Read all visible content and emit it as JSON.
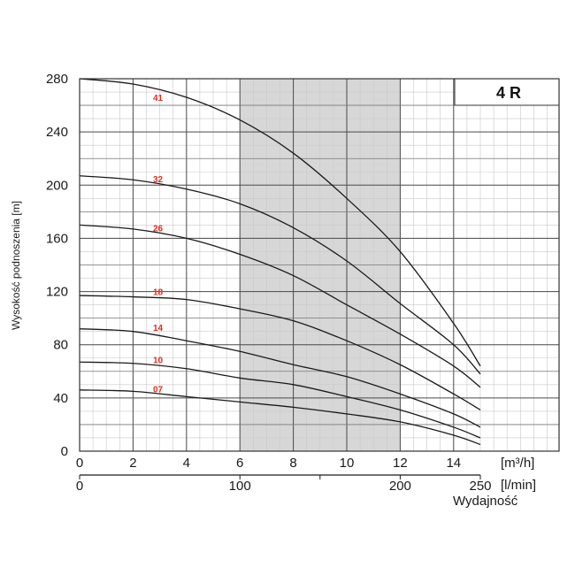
{
  "chart_data": {
    "type": "line",
    "model_label": "4 R",
    "ylabel": "Wysokość podnoszenia [m]",
    "x_unit_top": "[m³/h]",
    "x_unit_bottom": "[l/min]",
    "xlabel": "Wydajność",
    "xlim": [
      0,
      15
    ],
    "ylim": [
      0,
      280
    ],
    "x_ticks": [
      0,
      2,
      4,
      6,
      8,
      10,
      12,
      14
    ],
    "y_ticks": [
      0,
      40,
      80,
      120,
      160,
      200,
      240,
      280
    ],
    "x2_ticks": [
      0,
      100,
      150,
      200,
      250
    ],
    "x2_tick_labels": [
      "0",
      "100",
      "",
      "200",
      "250"
    ],
    "highlight_range": [
      6,
      12
    ],
    "highlight_color": "#d7d7d7",
    "curve_label_color": "#e0301e",
    "series": [
      {
        "name": "41",
        "label_at": [
          2.6,
          266
        ],
        "x": [
          0,
          2,
          4,
          6,
          8,
          10,
          12,
          14,
          15
        ],
        "y": [
          280,
          276,
          266,
          249,
          224,
          190,
          150,
          96,
          64
        ]
      },
      {
        "name": "32",
        "label_at": [
          2.6,
          205
        ],
        "x": [
          0,
          2,
          4,
          6,
          8,
          10,
          12,
          14,
          15
        ],
        "y": [
          207,
          204,
          197,
          186,
          168,
          143,
          111,
          80,
          58
        ]
      },
      {
        "name": "26",
        "label_at": [
          2.6,
          168
        ],
        "x": [
          0,
          2,
          4,
          6,
          8,
          10,
          12,
          14,
          15
        ],
        "y": [
          170,
          167,
          160,
          148,
          132,
          110,
          88,
          64,
          48
        ]
      },
      {
        "name": "18",
        "label_at": [
          2.6,
          120
        ],
        "x": [
          0,
          2,
          4,
          6,
          8,
          10,
          12,
          14,
          15
        ],
        "y": [
          117,
          116,
          114,
          107,
          98,
          83,
          65,
          43,
          31
        ]
      },
      {
        "name": "14",
        "label_at": [
          2.6,
          93
        ],
        "x": [
          0,
          2,
          4,
          6,
          8,
          10,
          12,
          14,
          15
        ],
        "y": [
          92,
          90,
          83,
          75,
          65,
          56,
          43,
          28,
          18
        ]
      },
      {
        "name": "10",
        "label_at": [
          2.6,
          69
        ],
        "x": [
          0,
          2,
          4,
          6,
          8,
          10,
          12,
          14,
          15
        ],
        "y": [
          67,
          66,
          62,
          55,
          50,
          41,
          31,
          18,
          10
        ]
      },
      {
        "name": "07",
        "label_at": [
          2.6,
          47
        ],
        "x": [
          0,
          2,
          4,
          6,
          8,
          10,
          12,
          14,
          15
        ],
        "y": [
          46,
          45,
          41,
          37,
          33,
          28,
          22,
          12,
          5
        ]
      }
    ]
  }
}
